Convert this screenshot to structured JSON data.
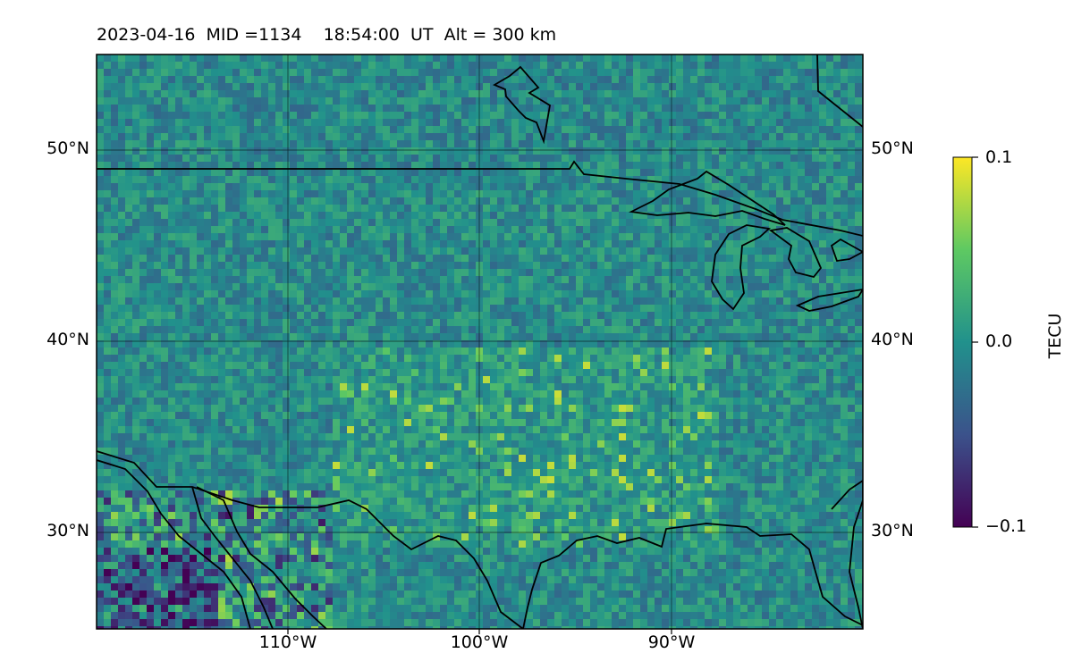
{
  "title": "2023-04-16  MID =1134    18:54:00  UT  Alt = 300 km",
  "map": {
    "lat_ticks": [
      "50°N",
      "40°N",
      "30°N"
    ],
    "lon_ticks": [
      "110°W",
      "100°W",
      "90°W"
    ],
    "lon_range": [
      -120,
      -80
    ],
    "lat_range": [
      25,
      55
    ],
    "grid": true,
    "features": [
      "coastlines",
      "national borders",
      "great lakes"
    ]
  },
  "colorbar": {
    "label": "TECU",
    "ticks": [
      "0.1",
      "0.0",
      "−0.1"
    ],
    "range": [
      -0.1,
      0.1
    ],
    "colormap": "viridis"
  }
}
